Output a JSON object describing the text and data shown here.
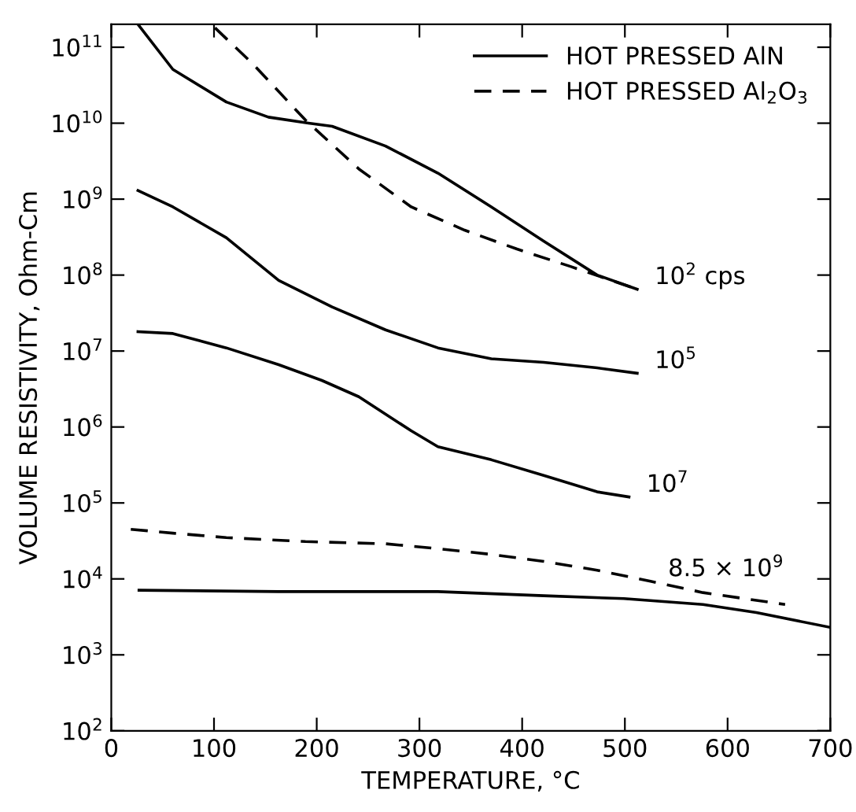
{
  "chart_data": {
    "type": "line",
    "xlabel": "TEMPERATURE, °C",
    "ylabel": "VOLUME RESISTIVITY, Ohm-Cm",
    "log": "y",
    "xlim": [
      0,
      700
    ],
    "ylim": [
      100,
      200000000000.0
    ],
    "xticks": [
      0,
      100,
      200,
      300,
      400,
      500,
      600,
      700
    ],
    "yticks": [
      {
        "value": 100,
        "label": "10$^{2}$"
      },
      {
        "value": 1000,
        "label": "10$^{3}$"
      },
      {
        "value": 10000,
        "label": "10$^{4}$"
      },
      {
        "value": 100000,
        "label": "10$^{5}$"
      },
      {
        "value": 1000000,
        "label": "10$^{6}$"
      },
      {
        "value": 10000000,
        "label": "10$^{7}$"
      },
      {
        "value": 100000000,
        "label": "10$^{8}$"
      },
      {
        "value": 1000000000,
        "label": "10$^{9}$"
      },
      {
        "value": 10000000000,
        "label": "10$^{10}$"
      },
      {
        "value": 100000000000,
        "label": "10$^{11}$"
      }
    ],
    "grid": false,
    "legend": "top right",
    "marker": "none",
    "series": [
      {
        "name": "HOT PRESSED AlN",
        "color": "#000000",
        "line_style": "solid",
        "x": [
          26,
          60,
          112,
          153,
          192,
          215,
          267,
          318,
          370,
          421,
          473,
          512
        ],
        "values": [
          200000000000.0,
          51000000000.0,
          19000000000.0,
          12000000000.0,
          10000000000.0,
          9100000000.0,
          5000000000.0,
          2200000000.0,
          790000000.0,
          280000000.0,
          100000000.0,
          65000000.0
        ]
      },
      {
        "name": "HOT PRESSED Al$_{2}$O$_{3}$",
        "color": "#000000",
        "line_style": "dashed",
        "x": [
          101,
          138,
          189,
          241,
          292,
          344,
          395,
          447,
          512
        ],
        "values": [
          180000000000.0,
          60000000000.0,
          11000000000.0,
          2500000000.0,
          790000000.0,
          390000000.0,
          220000000.0,
          130000000.0,
          65000000.0
        ]
      },
      {
        "color": "#000000",
        "line_style": "solid",
        "x": [
          26,
          60,
          112,
          163,
          215,
          267,
          318,
          370,
          421,
          473,
          512
        ],
        "values": [
          1300000000.0,
          790000000.0,
          310000000.0,
          85000000.0,
          38000000.0,
          19000000.0,
          11000000.0,
          7900000.0,
          7100000.0,
          6000000.0,
          5100000.0
        ]
      },
      {
        "color": "#000000",
        "line_style": "solid",
        "x": [
          26,
          60,
          112,
          163,
          205,
          241,
          292,
          318,
          370,
          421,
          473,
          504
        ],
        "values": [
          18000000.0,
          17000000.0,
          11000000.0,
          6600000.0,
          4100000.0,
          2500000.0,
          890000.0,
          550000.0,
          370000.0,
          230000.0,
          140000.0,
          120000.0
        ]
      },
      {
        "color": "#000000",
        "line_style": "dashed",
        "x": [
          19,
          60,
          112,
          189,
          267,
          318,
          370,
          421,
          473,
          525,
          576,
          656
        ],
        "values": [
          45000.0,
          40000.0,
          35000.0,
          31000.0,
          29000.0,
          25000.0,
          21000.0,
          17000.0,
          13000.0,
          9300.0,
          6600.0,
          4600.0
        ]
      },
      {
        "color": "#000000",
        "line_style": "solid",
        "x": [
          27,
          163,
          318,
          421,
          499,
          576,
          628,
          700
        ],
        "values": [
          7100.0,
          6800.0,
          6800.0,
          6000.0,
          5500.0,
          4600.0,
          3600.0,
          2300.0
        ]
      }
    ],
    "annotations": [
      {
        "text": "10$^{2}$ cps",
        "x": 512,
        "y": 65000000.0
      },
      {
        "text": "10$^{5}$",
        "x": 512,
        "y": 5100000.0
      },
      {
        "text": "10$^{7}$",
        "x": 504,
        "y": 120000.0
      },
      {
        "text": "8.5 × 10$^{9}$",
        "x": 525,
        "y": 9300.0
      }
    ]
  }
}
